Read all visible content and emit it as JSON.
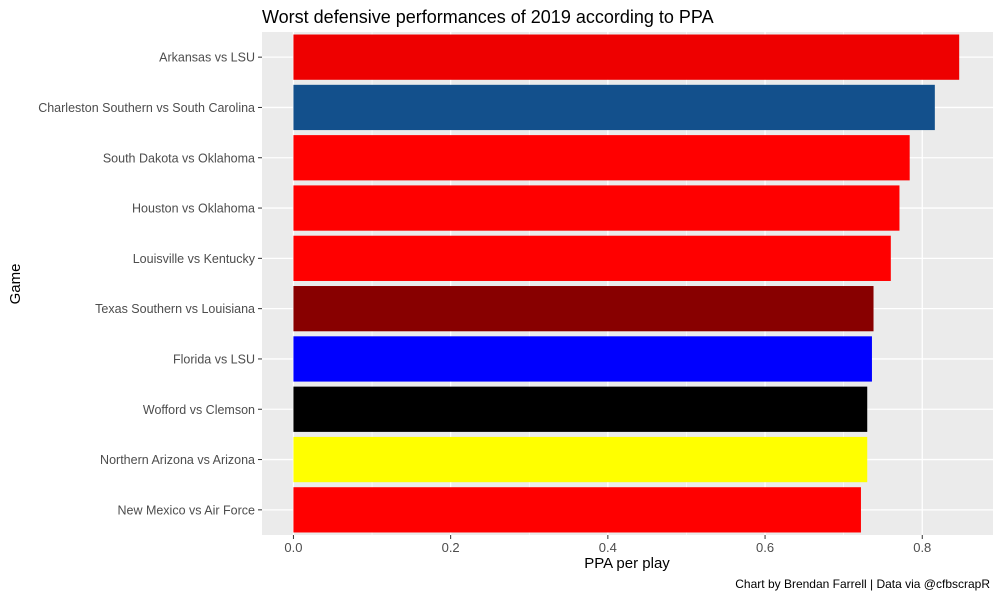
{
  "chart_data": {
    "type": "bar",
    "orientation": "horizontal",
    "title": "Worst defensive performances of 2019 according to PPA",
    "xlabel": "PPA per play",
    "ylabel": "Game",
    "caption": "Chart by Brendan Farrell | Data via @cfbscrapR",
    "xlim": [
      -0.04,
      0.89
    ],
    "xticks": [
      0.0,
      0.2,
      0.4,
      0.6,
      0.8
    ],
    "xtick_labels": [
      "0.0",
      "0.2",
      "0.4",
      "0.6",
      "0.8"
    ],
    "grid": true,
    "categories": [
      "Arkansas vs LSU",
      "Charleston Southern vs South Carolina",
      "South Dakota vs Oklahoma",
      "Houston vs Oklahoma",
      "Louisville vs Kentucky",
      "Texas Southern vs Louisiana",
      "Florida vs LSU",
      "Wofford vs Clemson",
      "Northern Arizona vs Arizona",
      "New Mexico vs Air Force"
    ],
    "values": [
      0.847,
      0.816,
      0.784,
      0.771,
      0.76,
      0.738,
      0.736,
      0.73,
      0.73,
      0.722
    ],
    "colors": [
      "#EE0000",
      "#13508C",
      "#FF0000",
      "#FF0000",
      "#FF0000",
      "#880000",
      "#0000FF",
      "#000000",
      "#FFFF00",
      "#FF0000"
    ]
  }
}
